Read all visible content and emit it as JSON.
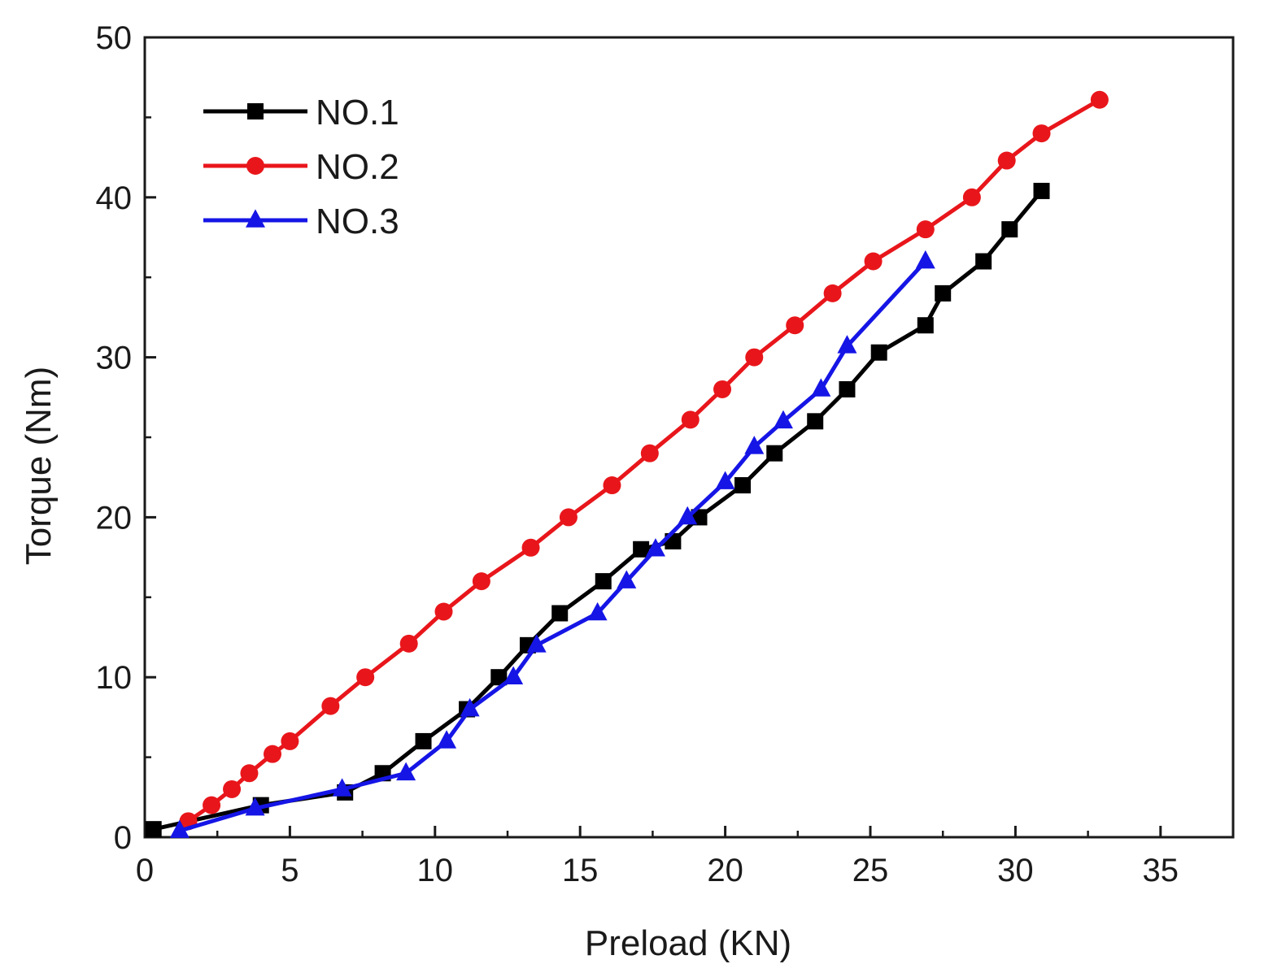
{
  "chart_data": {
    "type": "line",
    "title": "",
    "xlabel": "Preload (KN)",
    "ylabel": "Torque (Nm)",
    "xlim": [
      0,
      37.5
    ],
    "ylim": [
      0,
      50
    ],
    "xticks": [
      0,
      5,
      10,
      15,
      20,
      25,
      30,
      35
    ],
    "yticks": [
      0,
      10,
      20,
      30,
      40,
      50
    ],
    "xtick_labels": [
      "0",
      "5",
      "10",
      "15",
      "20",
      "25",
      "30",
      "35"
    ],
    "ytick_labels": [
      "0",
      "10",
      "20",
      "30",
      "40",
      "50"
    ],
    "grid": false,
    "legend_position": "top-left",
    "series": [
      {
        "name": "NO.1",
        "color": "#000000",
        "marker": "square",
        "x": [
          0.3,
          4.0,
          6.9,
          8.2,
          9.6,
          11.1,
          12.2,
          13.2,
          14.3,
          15.8,
          17.1,
          18.2,
          19.1,
          20.6,
          21.7,
          23.1,
          24.2,
          25.3,
          26.9,
          27.5,
          28.9,
          29.8,
          30.9
        ],
        "y": [
          0.5,
          2.0,
          2.8,
          4.0,
          6.0,
          8.0,
          10.0,
          12.0,
          14.0,
          16.0,
          18.0,
          18.5,
          20.0,
          22.0,
          24.0,
          26.0,
          28.0,
          30.3,
          32.0,
          34.0,
          36.0,
          38.0,
          40.4
        ]
      },
      {
        "name": "NO.2",
        "color": "#e8161b",
        "marker": "circle",
        "x": [
          1.5,
          2.3,
          3.0,
          3.6,
          4.4,
          5.0,
          6.4,
          7.6,
          9.1,
          10.3,
          11.6,
          13.3,
          14.6,
          16.1,
          17.4,
          18.8,
          19.9,
          21.0,
          22.4,
          23.7,
          25.1,
          26.9,
          28.5,
          29.7,
          30.9,
          32.9
        ],
        "y": [
          1.0,
          2.0,
          3.0,
          4.0,
          5.2,
          6.0,
          8.2,
          10.0,
          12.1,
          14.1,
          16.0,
          18.1,
          20.0,
          22.0,
          24.0,
          26.1,
          28.0,
          30.0,
          32.0,
          34.0,
          36.0,
          38.0,
          40.0,
          42.3,
          44.0,
          46.1
        ]
      },
      {
        "name": "NO.3",
        "color": "#1515e6",
        "marker": "triangle",
        "x": [
          1.2,
          3.8,
          6.8,
          9.0,
          10.4,
          11.2,
          12.7,
          13.5,
          15.6,
          16.6,
          17.6,
          18.7,
          20.0,
          21.0,
          22.0,
          23.3,
          24.2,
          26.9
        ],
        "y": [
          0.4,
          1.8,
          3.0,
          4.0,
          6.0,
          8.0,
          10.0,
          12.0,
          14.0,
          16.0,
          18.0,
          20.0,
          22.2,
          24.4,
          26.0,
          28.0,
          30.7,
          36.0
        ]
      }
    ]
  }
}
